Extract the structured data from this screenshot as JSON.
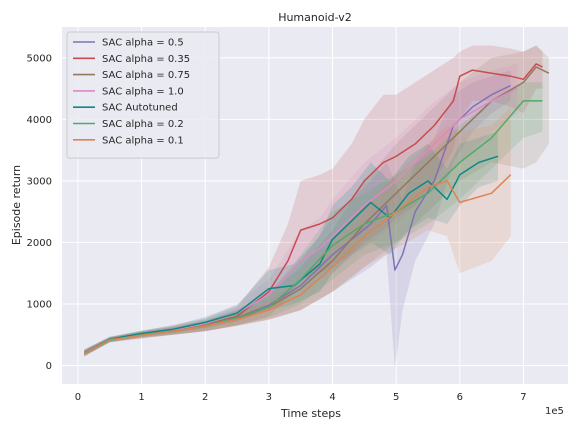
{
  "chart_data": {
    "type": "line",
    "title": "Humanoid-v2",
    "xlabel": "Time steps",
    "ylabel": "Episode return",
    "x_offset_label": "1e5",
    "xlim": [
      -0.25,
      7.7
    ],
    "ylim": [
      -300,
      5500
    ],
    "xticks": [
      0,
      1,
      2,
      3,
      4,
      5,
      6,
      7
    ],
    "yticks": [
      0,
      1000,
      2000,
      3000,
      4000,
      5000
    ],
    "grid": true,
    "legend_position": "top-left",
    "background": "#eaeaf2",
    "series": [
      {
        "name": "SAC alpha = 0.5",
        "color": "#8172b3",
        "x": [
          0.1,
          0.5,
          1.0,
          1.5,
          2.0,
          2.5,
          3.0,
          3.5,
          4.0,
          4.3,
          4.6,
          4.85,
          4.98,
          5.1,
          5.3,
          5.6,
          5.9,
          6.2,
          6.5,
          6.8
        ],
        "y": [
          200,
          420,
          500,
          570,
          640,
          780,
          980,
          1300,
          1800,
          2050,
          2300,
          2600,
          1550,
          1800,
          2500,
          3000,
          3900,
          4200,
          4400,
          4550
        ],
        "lower": [
          150,
          380,
          450,
          510,
          560,
          650,
          750,
          900,
          1200,
          1400,
          1600,
          1800,
          -50,
          900,
          1700,
          2300,
          3300,
          3800,
          4100,
          4300
        ],
        "upper": [
          250,
          460,
          550,
          630,
          720,
          900,
          1200,
          1700,
          2400,
          2700,
          3000,
          3300,
          3000,
          2700,
          3300,
          3700,
          4400,
          4600,
          4700,
          4800
        ]
      },
      {
        "name": "SAC alpha = 0.35",
        "color": "#c44e52",
        "x": [
          0.1,
          0.5,
          1.0,
          1.5,
          2.0,
          2.5,
          3.0,
          3.3,
          3.5,
          3.8,
          4.0,
          4.3,
          4.5,
          4.8,
          5.0,
          5.3,
          5.6,
          5.9,
          6.0,
          6.2,
          6.5,
          6.8,
          7.0,
          7.2,
          7.3
        ],
        "y": [
          200,
          420,
          500,
          580,
          660,
          800,
          1200,
          1700,
          2200,
          2300,
          2400,
          2700,
          3000,
          3300,
          3400,
          3600,
          3900,
          4300,
          4700,
          4800,
          4750,
          4700,
          4650,
          4900,
          4850
        ],
        "lower": [
          150,
          380,
          440,
          500,
          560,
          650,
          800,
          1100,
          1400,
          1500,
          1600,
          1800,
          2000,
          2200,
          2400,
          2600,
          3000,
          3500,
          4000,
          4300,
          4300,
          4200,
          4100,
          4500,
          4500
        ],
        "upper": [
          250,
          460,
          560,
          660,
          760,
          950,
          1600,
          2300,
          3000,
          3100,
          3200,
          3600,
          4000,
          4400,
          4400,
          4600,
          4800,
          5000,
          5100,
          5200,
          5200,
          5150,
          5100,
          5200,
          5100
        ]
      },
      {
        "name": "SAC alpha = 0.75",
        "color": "#937860",
        "x": [
          0.1,
          0.5,
          1.0,
          1.5,
          2.0,
          2.5,
          3.0,
          3.5,
          4.0,
          4.5,
          5.0,
          5.5,
          6.0,
          6.5,
          7.0,
          7.2,
          7.4
        ],
        "y": [
          200,
          420,
          510,
          560,
          640,
          760,
          950,
          1250,
          1700,
          2300,
          2800,
          3300,
          3800,
          4300,
          4600,
          4850,
          4750
        ],
        "lower": [
          150,
          380,
          460,
          500,
          560,
          650,
          750,
          900,
          1200,
          1600,
          2000,
          2500,
          3000,
          3300,
          3200,
          3300,
          3600
        ],
        "upper": [
          250,
          460,
          560,
          620,
          720,
          880,
          1150,
          1600,
          2200,
          3000,
          3600,
          4100,
          4600,
          5000,
          5100,
          5200,
          5000
        ]
      },
      {
        "name": "SAC alpha = 1.0",
        "color": "#da8bc3",
        "x": [
          0.1,
          0.5,
          1.0,
          1.5,
          2.0,
          2.5,
          3.0,
          3.5,
          3.8,
          4.0,
          4.5,
          5.0,
          5.5,
          6.0,
          6.5,
          6.9
        ],
        "y": [
          220,
          430,
          510,
          580,
          680,
          850,
          1150,
          1700,
          1900,
          2100,
          2600,
          3000,
          3500,
          4000,
          4300,
          4500
        ],
        "lower": [
          170,
          390,
          460,
          520,
          600,
          720,
          900,
          1200,
          1400,
          1500,
          1900,
          2300,
          2800,
          3300,
          3800,
          4100
        ],
        "upper": [
          270,
          470,
          560,
          640,
          760,
          1000,
          1400,
          2200,
          2400,
          2700,
          3300,
          3700,
          4200,
          4600,
          4800,
          4900
        ]
      },
      {
        "name": "SAC Autotuned",
        "color": "#0b8a86",
        "x": [
          0.1,
          0.5,
          1.0,
          1.5,
          2.0,
          2.5,
          3.0,
          3.4,
          3.8,
          4.0,
          4.3,
          4.6,
          4.9,
          5.2,
          5.5,
          5.8,
          6.0,
          6.3,
          6.6
        ],
        "y": [
          210,
          430,
          520,
          590,
          700,
          850,
          1250,
          1300,
          1650,
          2050,
          2350,
          2650,
          2400,
          2800,
          3000,
          2700,
          3100,
          3300,
          3400
        ],
        "lower": [
          160,
          390,
          470,
          530,
          610,
          720,
          900,
          1000,
          1200,
          1500,
          1800,
          2000,
          1800,
          2200,
          2400,
          2300,
          2600,
          2900,
          3000
        ],
        "upper": [
          260,
          470,
          570,
          650,
          790,
          980,
          1550,
          1650,
          2100,
          2600,
          2900,
          3300,
          3000,
          3400,
          3600,
          3200,
          3600,
          3700,
          3800
        ]
      },
      {
        "name": "SAC alpha = 0.2",
        "color": "#55a868",
        "x": [
          0.1,
          0.5,
          1.0,
          1.5,
          2.0,
          2.5,
          3.0,
          3.5,
          4.0,
          4.5,
          5.0,
          5.5,
          6.0,
          6.5,
          7.0,
          7.3
        ],
        "y": [
          200,
          410,
          500,
          560,
          650,
          780,
          950,
          1400,
          1950,
          2300,
          2500,
          2800,
          3300,
          3700,
          4300,
          4300
        ],
        "lower": [
          150,
          370,
          450,
          500,
          560,
          660,
          780,
          1000,
          1400,
          1800,
          2000,
          2300,
          2700,
          3200,
          3700,
          3800
        ],
        "upper": [
          250,
          450,
          550,
          620,
          740,
          900,
          1150,
          1800,
          2500,
          2800,
          3100,
          3400,
          3900,
          4300,
          4600,
          4600
        ]
      },
      {
        "name": "SAC alpha = 0.1",
        "color": "#dd8452",
        "x": [
          0.1,
          0.5,
          1.0,
          1.5,
          2.0,
          2.5,
          3.0,
          3.5,
          4.0,
          4.5,
          5.0,
          5.5,
          5.8,
          6.0,
          6.5,
          6.8
        ],
        "y": [
          200,
          420,
          490,
          560,
          640,
          750,
          900,
          1150,
          1600,
          2100,
          2500,
          2900,
          3000,
          2650,
          2800,
          3100
        ],
        "lower": [
          150,
          380,
          440,
          500,
          560,
          640,
          740,
          900,
          1200,
          1600,
          1900,
          2200,
          2100,
          1500,
          1700,
          2100
        ],
        "upper": [
          250,
          460,
          540,
          620,
          720,
          860,
          1050,
          1400,
          2000,
          2600,
          3100,
          3600,
          3900,
          3800,
          3900,
          4200
        ]
      }
    ]
  }
}
